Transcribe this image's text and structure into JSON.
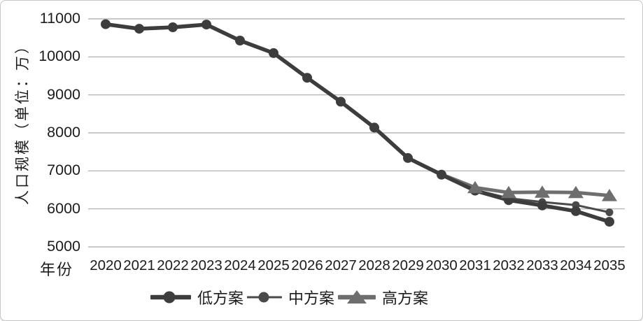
{
  "chart_data": {
    "type": "line",
    "title": "",
    "xlabel": "年份",
    "ylabel": "人口规模（单位：万）",
    "x": [
      2020,
      2021,
      2022,
      2023,
      2024,
      2025,
      2026,
      2027,
      2028,
      2029,
      2030,
      2031,
      2032,
      2033,
      2034,
      2035
    ],
    "ylim": [
      5000,
      11000
    ],
    "yticks": [
      11000,
      10000,
      9000,
      8000,
      7000,
      6000,
      5000
    ],
    "grid": true,
    "legend_position": "bottom",
    "series": [
      {
        "name": "低方案",
        "marker": "circle",
        "color": "#3d3d3d",
        "line_width": 5.5,
        "values": [
          10860,
          10740,
          10780,
          10850,
          10430,
          10100,
          9450,
          8820,
          8140,
          7340,
          6900,
          6480,
          6230,
          6090,
          5940,
          5660
        ]
      },
      {
        "name": "中方案",
        "marker": "circle",
        "color": "#4a4a4a",
        "line_width": 3,
        "values": [
          10860,
          10740,
          10780,
          10850,
          10430,
          10100,
          9450,
          8820,
          8140,
          7340,
          6900,
          6500,
          6280,
          6180,
          6100,
          5910
        ]
      },
      {
        "name": "高方案",
        "marker": "triangle",
        "color": "#6e6e6e",
        "line_width": 5,
        "markers_from_index": 11,
        "values": [
          10860,
          10740,
          10780,
          10850,
          10430,
          10100,
          9450,
          8820,
          8140,
          7340,
          6910,
          6560,
          6430,
          6440,
          6430,
          6350
        ]
      }
    ]
  },
  "palette": {
    "low": "#3d3d3d",
    "mid": "#4a4a4a",
    "high": "#6e6e6e",
    "grid": "#a9a9a9",
    "text": "#1c1c1c",
    "frame_border": "#c6c6c6",
    "background": "#ffffff"
  }
}
